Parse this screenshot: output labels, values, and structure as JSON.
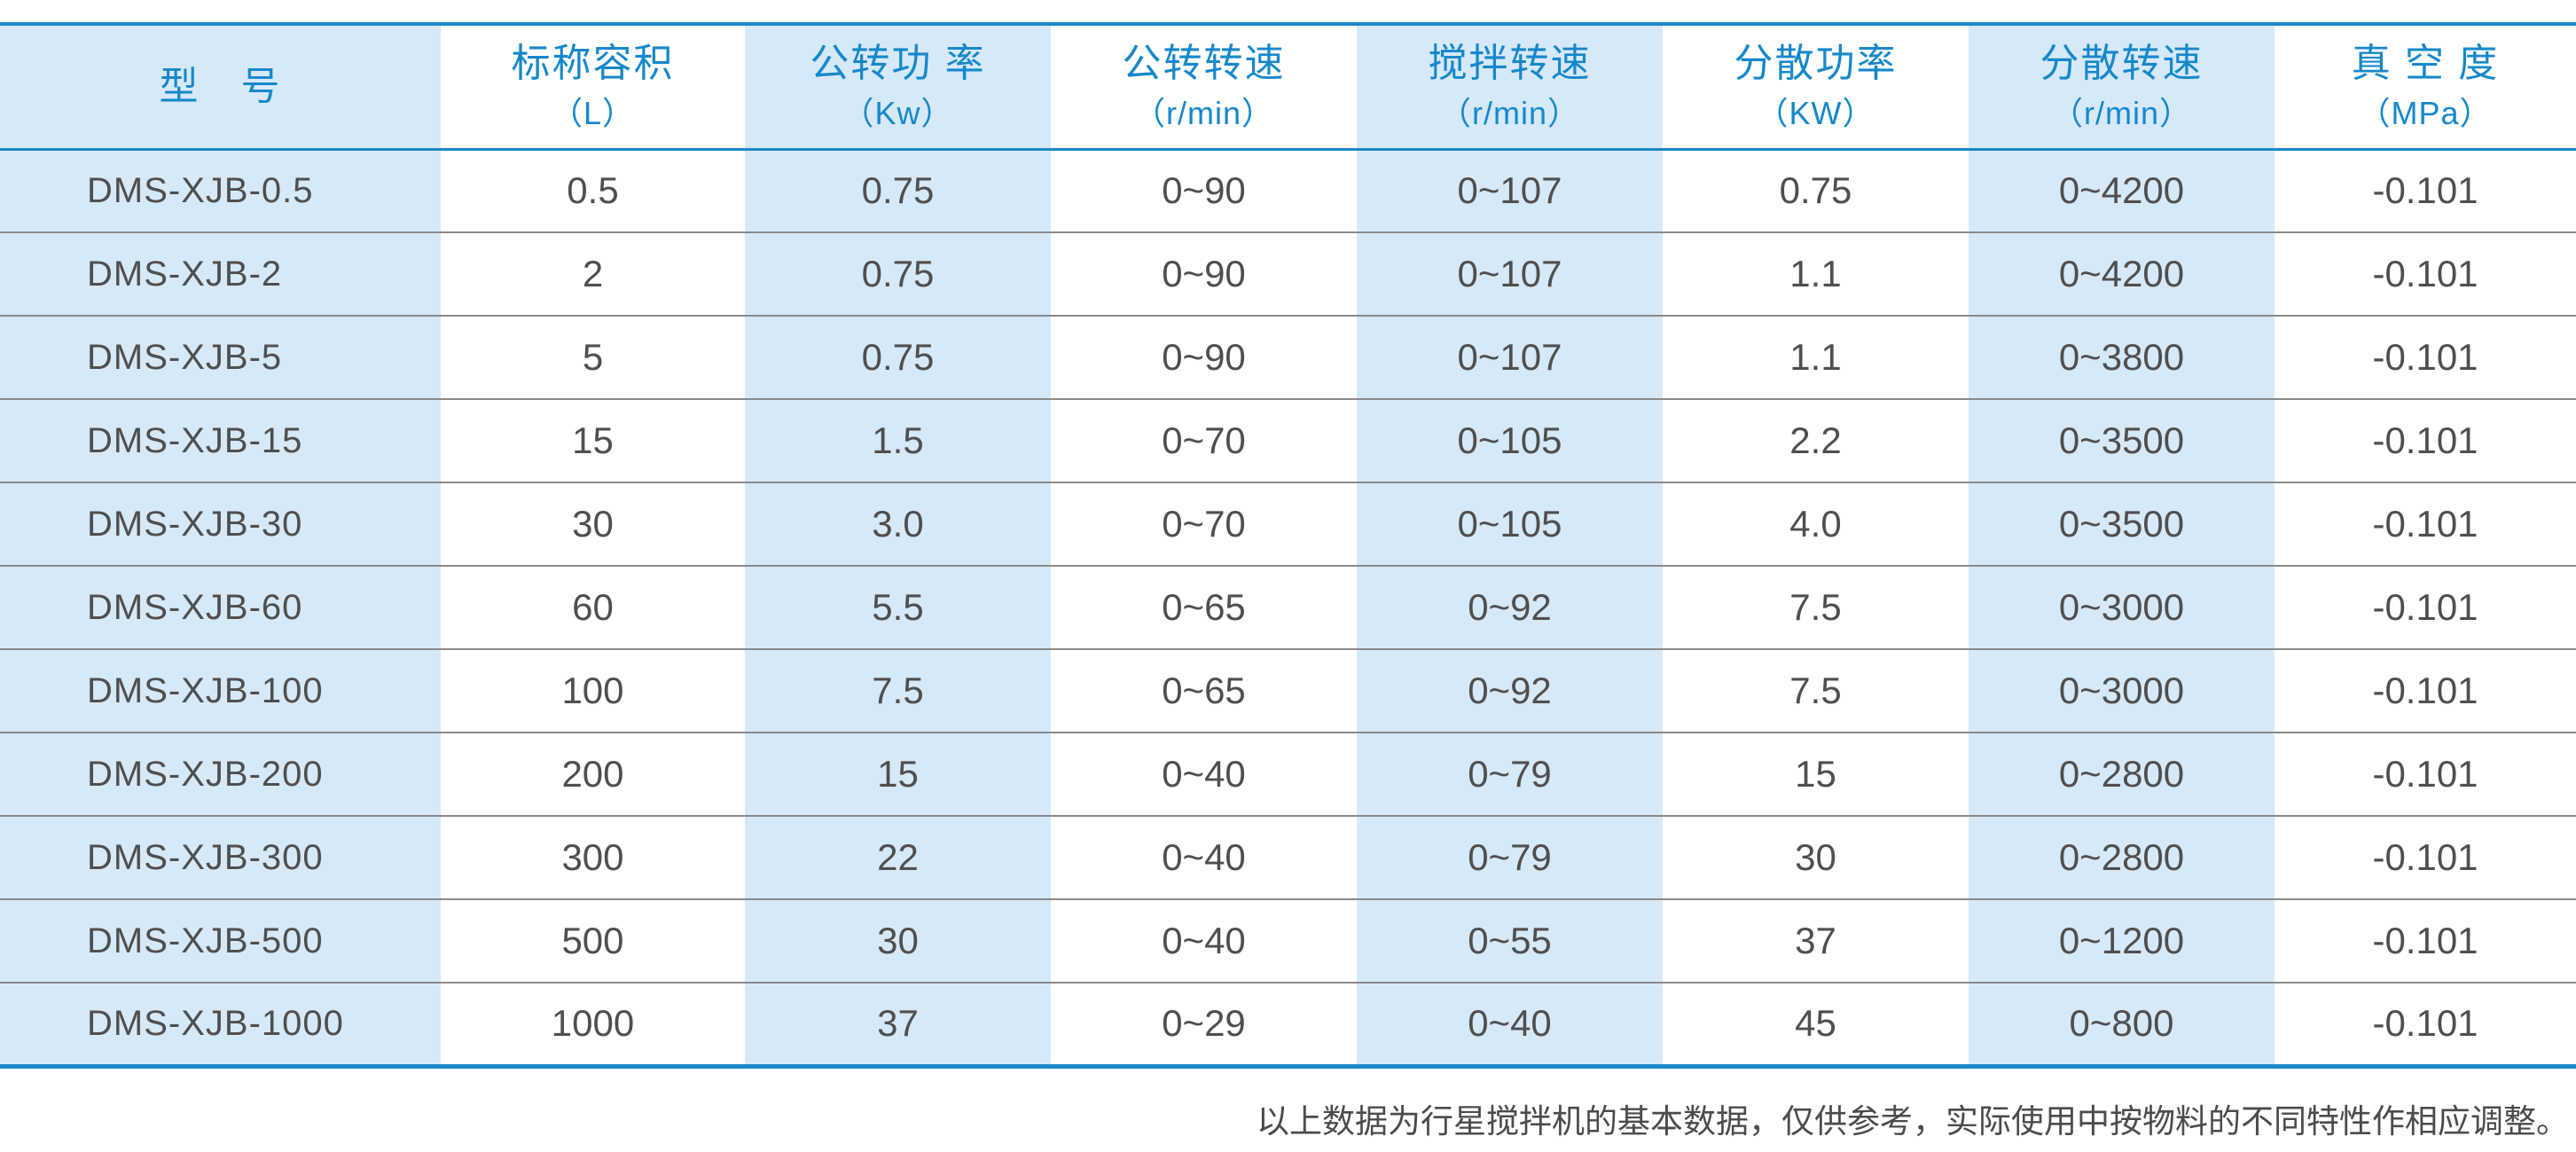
{
  "colors": {
    "accent_blue": "#1a87c9",
    "header_text_blue": "#1688ca",
    "stripe_light_blue": "#d6e9f8",
    "body_text_gray": "#4f4f4f",
    "row_divider_gray": "#8a8a8a"
  },
  "chart_data": {
    "type": "table",
    "columns": [
      {
        "label": "型　号",
        "unit": ""
      },
      {
        "label": "标称容积",
        "unit": "（L）"
      },
      {
        "label": "公转功 率",
        "unit": "（Kw）"
      },
      {
        "label": "公转转速",
        "unit": "（r/min）"
      },
      {
        "label": "搅拌转速",
        "unit": "（r/min）"
      },
      {
        "label": "分散功率",
        "unit": "（KW）"
      },
      {
        "label": "分散转速",
        "unit": "（r/min）"
      },
      {
        "label": "真 空 度",
        "unit": "（MPa）"
      }
    ],
    "rows": [
      [
        "DMS-XJB-0.5",
        "0.5",
        "0.75",
        "0~90",
        "0~107",
        "0.75",
        "0~4200",
        "-0.101"
      ],
      [
        "DMS-XJB-2",
        "2",
        "0.75",
        "0~90",
        "0~107",
        "1.1",
        "0~4200",
        "-0.101"
      ],
      [
        "DMS-XJB-5",
        "5",
        "0.75",
        "0~90",
        "0~107",
        "1.1",
        "0~3800",
        "-0.101"
      ],
      [
        "DMS-XJB-15",
        "15",
        "1.5",
        "0~70",
        "0~105",
        "2.2",
        "0~3500",
        "-0.101"
      ],
      [
        "DMS-XJB-30",
        "30",
        "3.0",
        "0~70",
        "0~105",
        "4.0",
        "0~3500",
        "-0.101"
      ],
      [
        "DMS-XJB-60",
        "60",
        "5.5",
        "0~65",
        "0~92",
        "7.5",
        "0~3000",
        "-0.101"
      ],
      [
        "DMS-XJB-100",
        "100",
        "7.5",
        "0~65",
        "0~92",
        "7.5",
        "0~3000",
        "-0.101"
      ],
      [
        "DMS-XJB-200",
        "200",
        "15",
        "0~40",
        "0~79",
        "15",
        "0~2800",
        "-0.101"
      ],
      [
        "DMS-XJB-300",
        "300",
        "22",
        "0~40",
        "0~79",
        "30",
        "0~2800",
        "-0.101"
      ],
      [
        "DMS-XJB-500",
        "500",
        "30",
        "0~40",
        "0~55",
        "37",
        "0~1200",
        "-0.101"
      ],
      [
        "DMS-XJB-1000",
        "1000",
        "37",
        "0~29",
        "0~40",
        "45",
        "0~800",
        "-0.101"
      ]
    ]
  },
  "footnote": "以上数据为行星搅拌机的基本数据，仅供参考，实际使用中按物料的不同特性作相应调整。"
}
